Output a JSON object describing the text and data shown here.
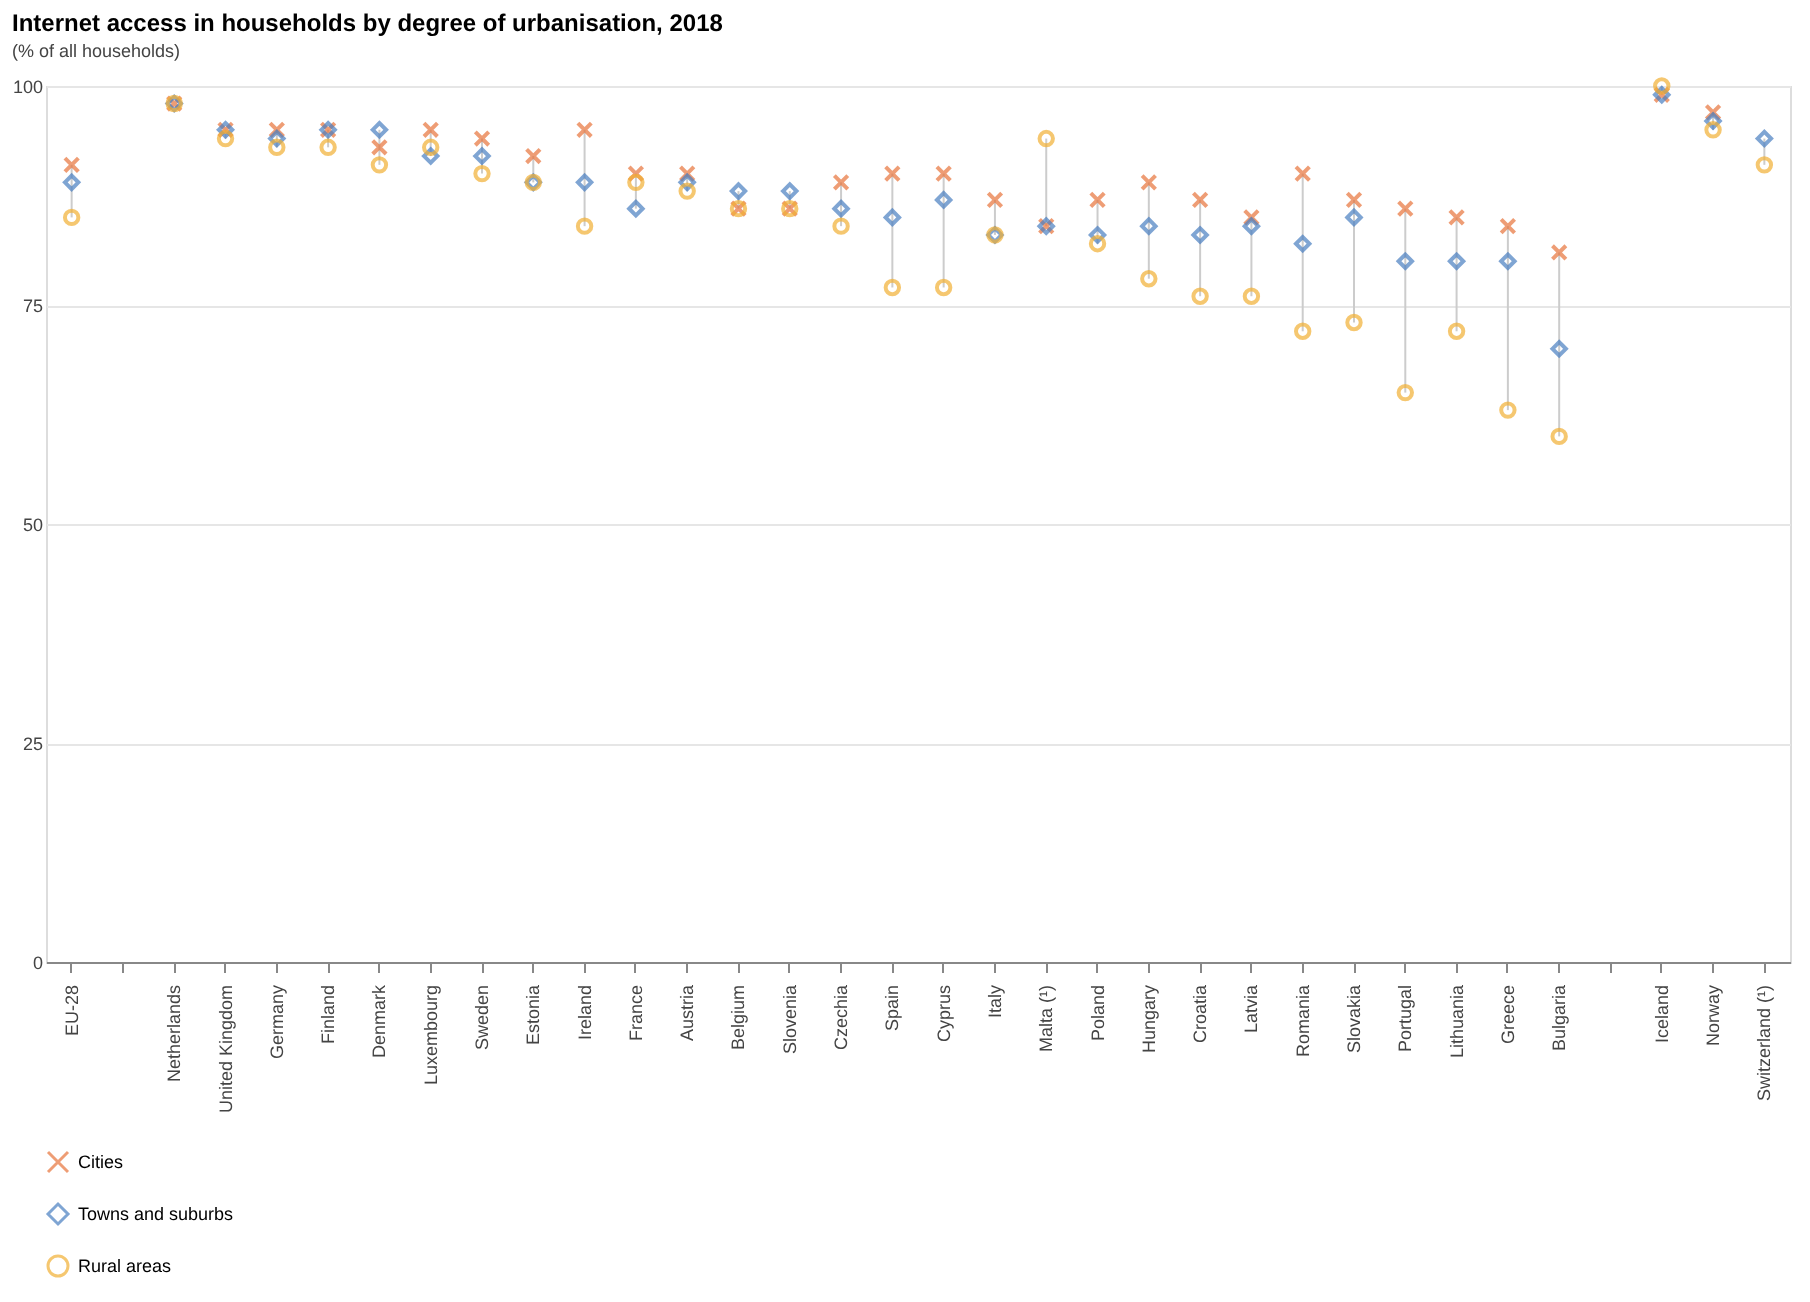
{
  "chart_data": {
    "type": "scatter",
    "title": "Internet access in households by degree of urbanisation, 2018",
    "subtitle": "(% of all households)",
    "categories": [
      "EU-28",
      null,
      "Netherlands",
      "United Kingdom",
      "Germany",
      "Finland",
      "Denmark",
      "Luxembourg",
      "Sweden",
      "Estonia",
      "Ireland",
      "France",
      "Austria",
      "Belgium",
      "Slovenia",
      "Czechia",
      "Spain",
      "Cyprus",
      "Italy",
      "Malta (¹)",
      "Poland",
      "Hungary",
      "Croatia",
      "Latvia",
      "Romania",
      "Slovakia",
      "Portugal",
      "Lithuania",
      "Greece",
      "Bulgaria",
      null,
      "Iceland",
      "Norway",
      "Switzerland (¹)"
    ],
    "series": [
      {
        "name": "Cities",
        "color": "#e8743b",
        "marker": "cross",
        "values": [
          91,
          null,
          98,
          95,
          95,
          95,
          93,
          95,
          94,
          92,
          95,
          90,
          90,
          86,
          86,
          89,
          90,
          90,
          87,
          84,
          87,
          89,
          87,
          85,
          90,
          87,
          86,
          85,
          84,
          81,
          null,
          99,
          97,
          null
        ]
      },
      {
        "name": "Towns and suburbs",
        "color": "#4a7fc1",
        "marker": "diamond",
        "values": [
          89,
          null,
          98,
          95,
          94,
          95,
          95,
          92,
          92,
          89,
          89,
          86,
          89,
          88,
          88,
          86,
          85,
          87,
          83,
          84,
          83,
          84,
          83,
          84,
          82,
          85,
          80,
          80,
          80,
          70,
          null,
          99,
          96,
          94
        ]
      },
      {
        "name": "Rural areas",
        "color": "#f2b035",
        "marker": "circle",
        "values": [
          85,
          null,
          98,
          94,
          93,
          93,
          91,
          93,
          90,
          89,
          84,
          89,
          88,
          86,
          86,
          84,
          77,
          77,
          83,
          94,
          82,
          78,
          76,
          76,
          72,
          73,
          65,
          72,
          63,
          60,
          null,
          100,
          95,
          91
        ]
      }
    ],
    "ylim": [
      0,
      100
    ],
    "yticks": [
      0,
      25,
      50,
      75,
      100
    ],
    "grid": "y",
    "legend": "bottom"
  }
}
